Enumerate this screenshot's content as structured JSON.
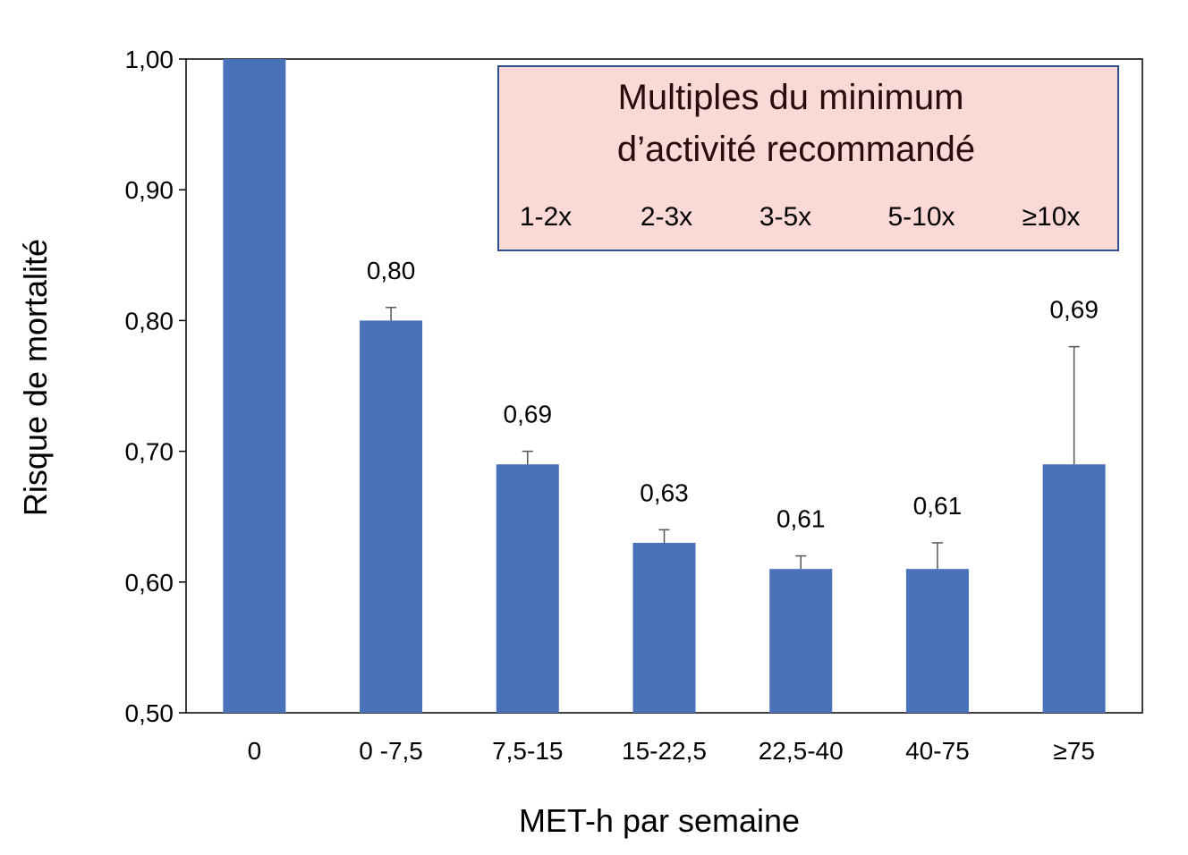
{
  "chart_data": {
    "type": "bar",
    "title": "",
    "xlabel": "MET-h par semaine",
    "ylabel": "Risque de mortalité",
    "ylim": [
      0.5,
      1.0
    ],
    "yticks": [
      "0,50",
      "0,60",
      "0,70",
      "0,80",
      "0,90",
      "1,00"
    ],
    "ytick_values": [
      0.5,
      0.6,
      0.7,
      0.8,
      0.9,
      1.0
    ],
    "categories": [
      "0",
      "0 -7,5",
      "7,5-15",
      "15-22,5",
      "22,5-40",
      "40-75",
      "≥75"
    ],
    "values": [
      1.0,
      0.8,
      0.69,
      0.63,
      0.61,
      0.61,
      0.69
    ],
    "error_upper": [
      null,
      0.81,
      0.7,
      0.64,
      0.62,
      0.63,
      0.78
    ],
    "data_labels": [
      "",
      "0,80",
      "0,69",
      "0,63",
      "0,61",
      "0,61",
      "0,69"
    ],
    "bar_color": "#4a72bb",
    "grid": false,
    "annotation_box": {
      "title_line1": "Multiples du minimum",
      "title_line2": "d’activité recommandé",
      "multiples": [
        "1-2x",
        "2-3x",
        "3-5x",
        "5-10x",
        "≥10x"
      ],
      "fill_color": "#fbd9d7",
      "border_color": "#2f4f8f"
    }
  }
}
